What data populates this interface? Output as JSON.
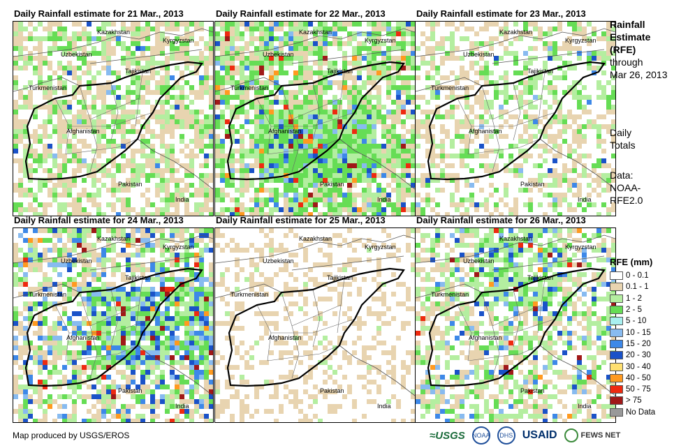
{
  "panels": [
    {
      "title": "Daily Rainfall estimate for 21 Mar., 2013",
      "day": 21
    },
    {
      "title": "Daily Rainfall estimate for 22 Mar., 2013",
      "day": 22
    },
    {
      "title": "Daily Rainfall estimate for 23 Mar., 2013",
      "day": 23
    },
    {
      "title": "Daily Rainfall estimate for 24 Mar., 2013",
      "day": 24
    },
    {
      "title": "Daily Rainfall estimate for 25 Mar., 2013",
      "day": 25
    },
    {
      "title": "Daily Rainfall estimate for 26 Mar., 2013",
      "day": 26
    }
  ],
  "country_labels": {
    "kazakhstan": "Kazakhstan",
    "kyrgyzstan": "Kyrgyzstan",
    "uzbekistan": "Uzbekistan",
    "tajikistan": "Tajikistan",
    "turkmenistan": "Turkmenistan",
    "afghanistan": "Afghanistan",
    "pakistan": "Pakistan",
    "india": "India"
  },
  "side_info": {
    "title_line1": "Rainfall",
    "title_line2": "Estimate",
    "title_line3": "(RFE)",
    "through": "through",
    "date": "Mar 26, 2013",
    "daily1": "Daily",
    "daily2": "Totals",
    "data1": "Data:",
    "data2": "NOAA-",
    "data3": "RFE2.0"
  },
  "legend": {
    "title": "RFE (mm)",
    "items": [
      {
        "label": "0 - 0.1",
        "color": "#ffffff"
      },
      {
        "label": "0.1 - 1",
        "color": "#e8d4b0"
      },
      {
        "label": "1 - 2",
        "color": "#b4eea0"
      },
      {
        "label": "2 - 5",
        "color": "#66dd55"
      },
      {
        "label": "5 - 10",
        "color": "#a8f0f0"
      },
      {
        "label": "10 - 15",
        "color": "#88bbf0"
      },
      {
        "label": "15 - 20",
        "color": "#3d88e8"
      },
      {
        "label": "20 - 30",
        "color": "#1a52c8"
      },
      {
        "label": "30 - 40",
        "color": "#ffe070"
      },
      {
        "label": "40 - 50",
        "color": "#ff9a20"
      },
      {
        "label": "50 - 75",
        "color": "#ee2a10"
      },
      {
        "label": "> 75",
        "color": "#a01818"
      },
      {
        "label": "No Data",
        "color": "#999999"
      }
    ]
  },
  "credit": "Map produced by USGS/EROS",
  "logos": {
    "usgs": "≈USGS",
    "noaa": "NOAA",
    "dhs": "DHS",
    "usaid": "USAID",
    "fews": "FEWS NET"
  }
}
